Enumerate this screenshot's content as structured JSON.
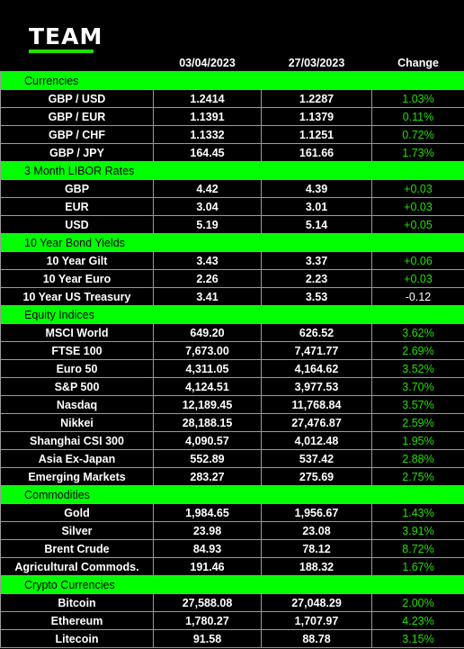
{
  "brand": {
    "logo_text": "TEAM",
    "accent": "#22e000",
    "section_bg": "#00ff00"
  },
  "columns": [
    "",
    "03/04/2023",
    "27/03/2023",
    "Change"
  ],
  "sections": [
    {
      "title": "Currencies",
      "rows": [
        {
          "name": "GBP / USD",
          "current": "1.2414",
          "previous": "1.2287",
          "change": "1.03%"
        },
        {
          "name": "GBP / EUR",
          "current": "1.1391",
          "previous": "1.1379",
          "change": "0.11%"
        },
        {
          "name": "GBP / CHF",
          "current": "1.1332",
          "previous": "1.1251",
          "change": "0.72%"
        },
        {
          "name": "GBP / JPY",
          "current": "164.45",
          "previous": "161.66",
          "change": "1.73%"
        }
      ]
    },
    {
      "title": "3 Month LIBOR Rates",
      "rows": [
        {
          "name": "GBP",
          "current": "4.42",
          "previous": "4.39",
          "change": "+0.03"
        },
        {
          "name": "EUR",
          "current": "3.04",
          "previous": "3.01",
          "change": "+0.03"
        },
        {
          "name": "USD",
          "current": "5.19",
          "previous": "5.14",
          "change": "+0.05"
        }
      ]
    },
    {
      "title": "10 Year Bond Yields",
      "rows": [
        {
          "name": "10 Year Gilt",
          "current": "3.43",
          "previous": "3.37",
          "change": "+0.06"
        },
        {
          "name": "10 Year Euro",
          "current": "2.26",
          "previous": "2.23",
          "change": "+0.03"
        },
        {
          "name": "10 Year US Treasury",
          "current": "3.41",
          "previous": "3.53",
          "change": "-0.12"
        }
      ]
    },
    {
      "title": "Equity Indices",
      "rows": [
        {
          "name": "MSCI World",
          "current": "649.20",
          "previous": "626.52",
          "change": "3.62%"
        },
        {
          "name": "FTSE 100",
          "current": "7,673.00",
          "previous": "7,471.77",
          "change": "2.69%"
        },
        {
          "name": "Euro 50",
          "current": "4,311.05",
          "previous": "4,164.62",
          "change": "3.52%"
        },
        {
          "name": "S&P 500",
          "current": "4,124.51",
          "previous": "3,977.53",
          "change": "3.70%"
        },
        {
          "name": "Nasdaq",
          "current": "12,189.45",
          "previous": "11,768.84",
          "change": "3.57%"
        },
        {
          "name": "Nikkei",
          "current": "28,188.15",
          "previous": "27,476.87",
          "change": "2.59%"
        },
        {
          "name": "Shanghai CSI 300",
          "current": "4,090.57",
          "previous": "4,012.48",
          "change": "1.95%"
        },
        {
          "name": "Asia Ex-Japan",
          "current": "552.89",
          "previous": "537.42",
          "change": "2.88%"
        },
        {
          "name": "Emerging Markets",
          "current": "283.27",
          "previous": "275.69",
          "change": "2.75%"
        }
      ]
    },
    {
      "title": "Commodities",
      "rows": [
        {
          "name": "Gold",
          "current": "1,984.65",
          "previous": "1,956.67",
          "change": "1.43%"
        },
        {
          "name": "Silver",
          "current": "23.98",
          "previous": "23.08",
          "change": "3.91%"
        },
        {
          "name": "Brent Crude",
          "current": "84.93",
          "previous": "78.12",
          "change": "8.72%"
        },
        {
          "name": "Agricultural Commods.",
          "current": "191.46",
          "previous": "188.32",
          "change": "1.67%"
        }
      ]
    },
    {
      "title": "Crypto Currencies",
      "rows": [
        {
          "name": "Bitcoin",
          "current": "27,588.08",
          "previous": "27,048.29",
          "change": "2.00%"
        },
        {
          "name": "Ethereum",
          "current": "1,780.27",
          "previous": "1,707.97",
          "change": "4.23%"
        },
        {
          "name": "Litecoin",
          "current": "91.58",
          "previous": "88.78",
          "change": "3.15%"
        }
      ]
    }
  ]
}
